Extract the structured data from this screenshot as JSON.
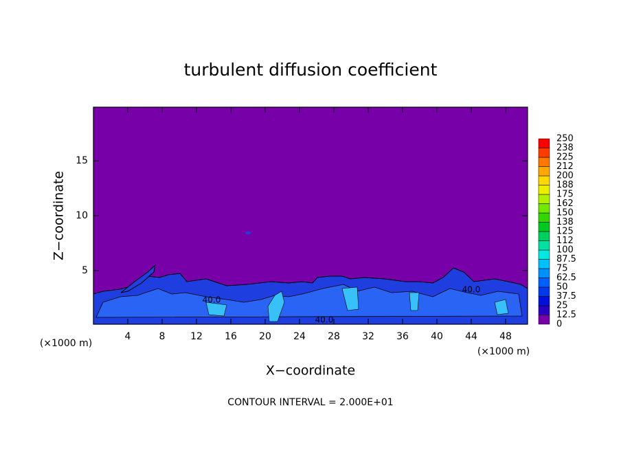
{
  "chart_data": {
    "type": "contour",
    "title": "turbulent diffusion coefficient",
    "xlabel": "X−coordinate",
    "ylabel": "Z−coordinate",
    "xunit": "(×1000 m)",
    "yunit": "(×1000 m)",
    "footnote": "CONTOUR INTERVAL = 2.000E+01",
    "xlim": [
      0,
      50.56
    ],
    "ylim": [
      0.1,
      19.9
    ],
    "xticks": [
      4,
      8,
      12,
      16,
      20,
      24,
      28,
      32,
      36,
      40,
      44,
      48
    ],
    "yticks": [
      5,
      10,
      15
    ],
    "contour_labels": [
      "40.0",
      "40.0",
      "40.0"
    ],
    "colorbar": {
      "levels": [
        0,
        12.5,
        25,
        37.5,
        50,
        62.5,
        75,
        87.5,
        100,
        112,
        125,
        138,
        150,
        162,
        175,
        188,
        200,
        212,
        225,
        238,
        250
      ],
      "colors": [
        "#7800a8",
        "#2a00c0",
        "#0010d8",
        "#0038ec",
        "#0060ff",
        "#0090ff",
        "#00c0ff",
        "#00e8e0",
        "#00e0a0",
        "#00d060",
        "#00c820",
        "#30d800",
        "#70e800",
        "#b0f000",
        "#e8f000",
        "#ffd800",
        "#ffa800",
        "#ff7800",
        "#ff3c00",
        "#ff0000",
        "#f08888"
      ]
    }
  }
}
